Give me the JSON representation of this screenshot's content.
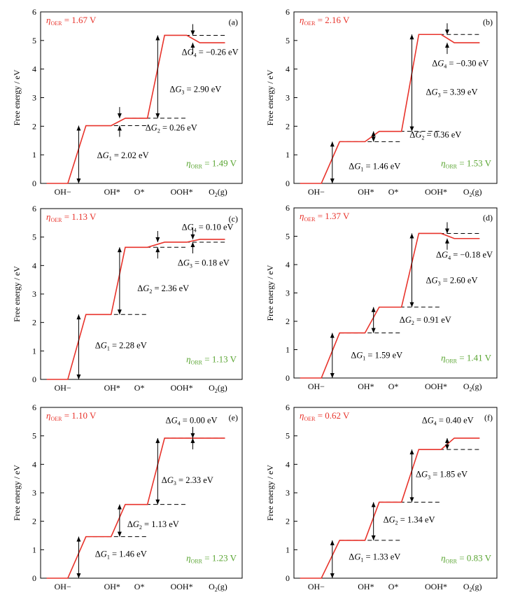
{
  "figure": {
    "axis_y_label": "Free energy / eV",
    "x_ticks": [
      "OH−",
      "OH*",
      "O*",
      "OOH*",
      "O2(g)"
    ],
    "y_ticks": [
      "0",
      "1",
      "2",
      "3",
      "4",
      "5",
      "6"
    ],
    "eta_oer_label": "OER",
    "eta_orr_label": "ORR",
    "colors": {
      "oer": "#e8332b",
      "orr": "#5aa532",
      "axis": "#000000"
    }
  },
  "chart_data": [
    {
      "type": "line",
      "panel": "(a)",
      "ylabel": "Free energy / eV",
      "ylim": [
        0,
        6
      ],
      "categories": [
        "OH−",
        "OH*",
        "O*",
        "OOH*",
        "O2(g)"
      ],
      "values": [
        0,
        2.02,
        2.28,
        5.18,
        4.92
      ],
      "steps": [
        {
          "name": "ΔG1",
          "value": "2.02 eV"
        },
        {
          "name": "ΔG2",
          "value": "0.26 eV"
        },
        {
          "name": "ΔG3",
          "value": "2.90 eV"
        },
        {
          "name": "ΔG4",
          "value": "−0.26 eV"
        }
      ],
      "eta_oer": "1.67 V",
      "eta_orr": "1.49 V"
    },
    {
      "type": "line",
      "panel": "(b)",
      "ylabel": "Free energy / eV",
      "ylim": [
        0,
        6
      ],
      "categories": [
        "OH−",
        "OH*",
        "O*",
        "OOH*",
        "O2(g)"
      ],
      "values": [
        0,
        1.46,
        1.82,
        5.21,
        4.92
      ],
      "steps": [
        {
          "name": "ΔG1",
          "value": "1.46 eV"
        },
        {
          "name": "ΔG2",
          "value": "0.36 eV"
        },
        {
          "name": "ΔG3",
          "value": "3.39 eV"
        },
        {
          "name": "ΔG4",
          "value": "−0.30 eV"
        }
      ],
      "eta_oer": "2.16 V",
      "eta_orr": "1.53 V"
    },
    {
      "type": "line",
      "panel": "(c)",
      "ylabel": "Free energy / eV",
      "ylim": [
        0,
        6
      ],
      "categories": [
        "OH−",
        "OH*",
        "O*",
        "OOH*",
        "O2(g)"
      ],
      "values": [
        0,
        2.28,
        4.64,
        4.82,
        4.92
      ],
      "steps": [
        {
          "name": "ΔG1",
          "value": "2.28 eV"
        },
        {
          "name": "ΔG2",
          "value": "2.36 eV"
        },
        {
          "name": "ΔG3",
          "value": "0.18 eV"
        },
        {
          "name": "ΔG4",
          "value": "0.10 eV"
        }
      ],
      "eta_oer": "1.13 V",
      "eta_orr": "1.13 V"
    },
    {
      "type": "line",
      "panel": "(d)",
      "ylabel": "Free energy / eV",
      "ylim": [
        0,
        6
      ],
      "categories": [
        "OH−",
        "OH*",
        "O*",
        "OOH*",
        "O2(g)"
      ],
      "values": [
        0,
        1.59,
        2.5,
        5.1,
        4.92
      ],
      "steps": [
        {
          "name": "ΔG1",
          "value": "1.59 eV"
        },
        {
          "name": "ΔG2",
          "value": "0.91 eV"
        },
        {
          "name": "ΔG3",
          "value": "2.60 eV"
        },
        {
          "name": "ΔG4",
          "value": "−0.18 eV"
        }
      ],
      "eta_oer": "1.37 V",
      "eta_orr": "1.41 V"
    },
    {
      "type": "line",
      "panel": "(e)",
      "ylabel": "Free energy / eV",
      "ylim": [
        0,
        6
      ],
      "categories": [
        "OH−",
        "OH*",
        "O*",
        "OOH*",
        "O2(g)"
      ],
      "values": [
        0,
        1.46,
        2.59,
        4.92,
        4.92
      ],
      "steps": [
        {
          "name": "ΔG1",
          "value": "1.46 eV"
        },
        {
          "name": "ΔG2",
          "value": "1.13 eV"
        },
        {
          "name": "ΔG3",
          "value": "2.33 eV"
        },
        {
          "name": "ΔG4",
          "value": "0.00 eV"
        }
      ],
      "eta_oer": "1.10 V",
      "eta_orr": "1.23 V"
    },
    {
      "type": "line",
      "panel": "(f)",
      "ylabel": "Free energy / eV",
      "ylim": [
        0,
        6
      ],
      "categories": [
        "OH−",
        "OH*",
        "O*",
        "OOH*",
        "O2(g)"
      ],
      "values": [
        0,
        1.33,
        2.67,
        4.52,
        4.92
      ],
      "steps": [
        {
          "name": "ΔG1",
          "value": "1.33 eV"
        },
        {
          "name": "ΔG2",
          "value": "1.34 eV"
        },
        {
          "name": "ΔG3",
          "value": "1.85 eV"
        },
        {
          "name": "ΔG4",
          "value": "0.40 eV"
        }
      ],
      "eta_oer": "0.62 V",
      "eta_orr": "0.83 V"
    }
  ]
}
